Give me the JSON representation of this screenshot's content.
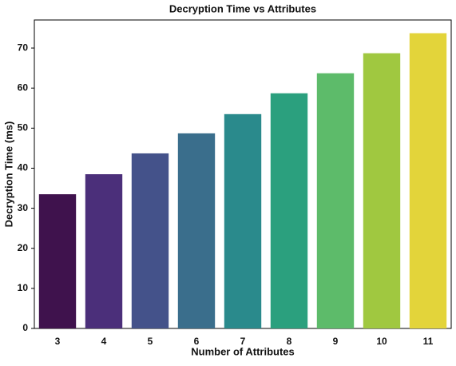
{
  "chart_data": {
    "type": "bar",
    "title": "Decryption Time vs Attributes",
    "x_label": "Number of Attributes",
    "y_label": "Decryption Time (ms)",
    "categories": [
      "3",
      "4",
      "5",
      "6",
      "7",
      "8",
      "9",
      "10",
      "11"
    ],
    "values": [
      33.5,
      38.5,
      43.7,
      48.7,
      53.5,
      58.7,
      63.7,
      68.7,
      73.7
    ],
    "colors": [
      "#3f124d",
      "#4b2f7a",
      "#44528a",
      "#3a6e8c",
      "#2a8a8c",
      "#2ba07e",
      "#5dbb6a",
      "#a0c840",
      "#e3d43a"
    ],
    "ylim": [
      0,
      77
    ],
    "yticks": [
      0,
      10,
      20,
      30,
      40,
      50,
      60,
      70
    ],
    "grid": false
  }
}
